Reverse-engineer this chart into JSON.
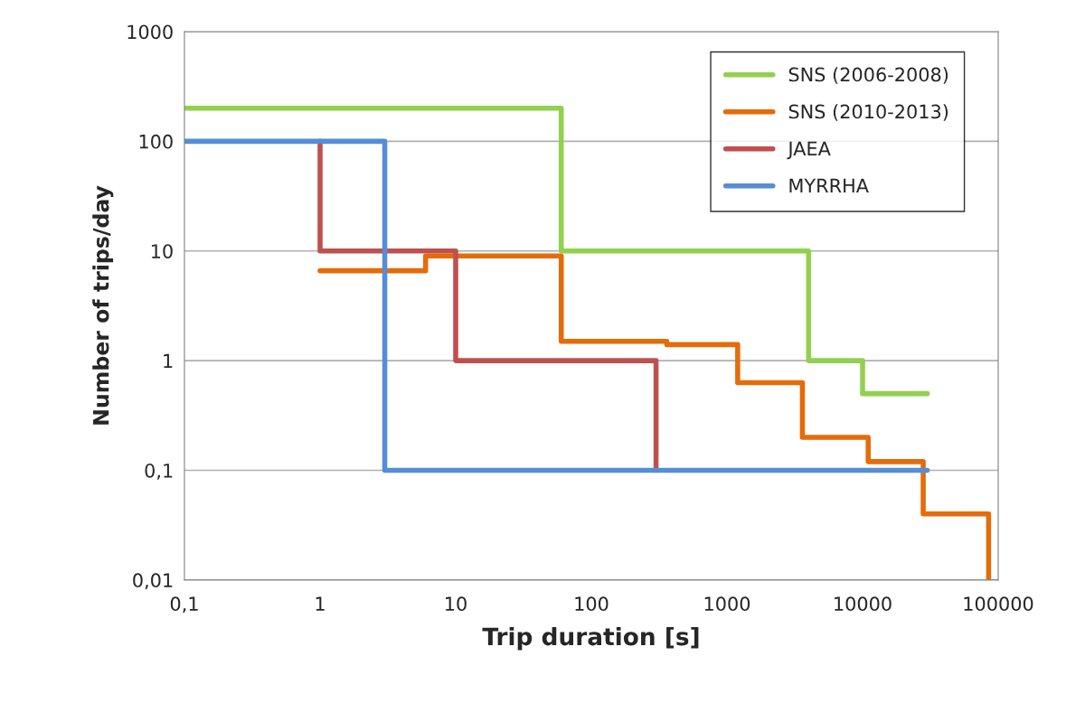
{
  "chart_data": {
    "type": "line",
    "xlabel": "Trip duration [s]",
    "ylabel": "Number of trips/day",
    "log": "xy",
    "grid": "y",
    "legend": "top right",
    "marker": "none",
    "line_style": "solid",
    "xlim": [
      0.1,
      100000
    ],
    "ylim": [
      0.01,
      1000
    ],
    "xticks": [
      {
        "value": 0.1,
        "label": "0,1"
      },
      1,
      10,
      100,
      1000,
      10000,
      100000
    ],
    "yticks": [
      {
        "value": 0.01,
        "label": "0,01"
      },
      {
        "value": 0.1,
        "label": "0,1"
      },
      1,
      10,
      100,
      1000
    ],
    "series": [
      {
        "name": "SNS (2006-2008)",
        "color": "#92d050",
        "x": [
          0.1,
          60,
          60,
          4000,
          4000,
          10000,
          10000,
          30000
        ],
        "values": [
          200,
          200,
          10,
          10,
          1,
          1,
          0.5,
          0.5
        ]
      },
      {
        "name": "SNS (2010-2013)",
        "color": "#e46c0a",
        "x": [
          1,
          6,
          6,
          60,
          60,
          360,
          360,
          1200,
          1200,
          3600,
          3600,
          11000,
          11000,
          28000,
          28000,
          85000,
          85000
        ],
        "values": [
          6.6,
          6.6,
          9,
          9,
          1.5,
          1.5,
          1.4,
          1.4,
          0.63,
          0.63,
          0.2,
          0.2,
          0.12,
          0.12,
          0.04,
          0.04,
          0.01
        ]
      },
      {
        "name": "JAEA",
        "color": "#c0504d",
        "x": [
          1,
          1,
          10,
          10,
          300,
          300
        ],
        "values": [
          100,
          10,
          10,
          1,
          1,
          0.1
        ]
      },
      {
        "name": "MYRRHA",
        "color": "#558ed5",
        "x": [
          0.1,
          3,
          3,
          30000
        ],
        "values": [
          100,
          100,
          0.1,
          0.1
        ]
      }
    ]
  }
}
